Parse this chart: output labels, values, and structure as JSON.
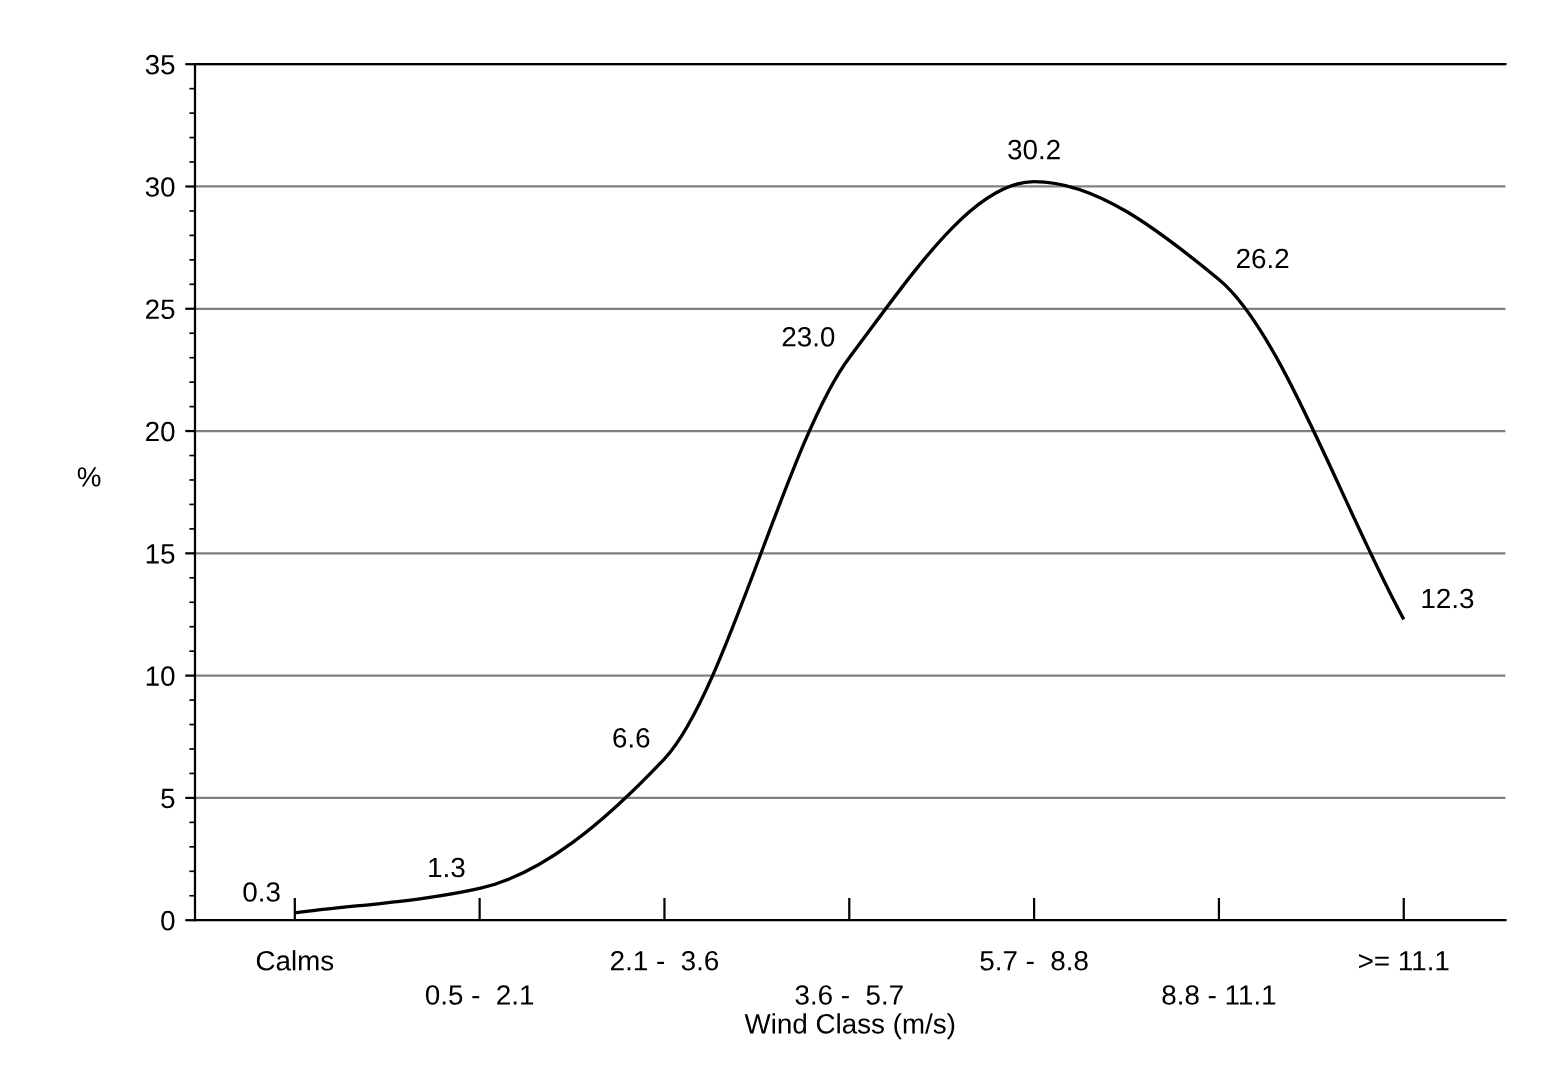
{
  "chart_data": {
    "type": "line",
    "xlabel": "Wind Class (m/s)",
    "ylabel": "%",
    "categories": [
      "Calms",
      "0.5 -  2.1",
      "2.1 -  3.6",
      "3.6 -  5.7",
      "5.7 -  8.8",
      "8.8 - 11.1",
      ">= 11.1"
    ],
    "series": [
      {
        "color": "#000000",
        "values": [
          0.3,
          1.3,
          6.6,
          23.0,
          30.2,
          26.2,
          12.3
        ]
      }
    ],
    "value_labels": [
      "0.3",
      "1.3",
      "6.6",
      "23.0",
      "30.2",
      "26.2",
      "12.3"
    ],
    "ylim": [
      0,
      35
    ],
    "yticks": [
      0,
      5,
      10,
      15,
      20,
      25,
      30,
      35
    ],
    "grid": "y",
    "marker": "none",
    "line_style": "solid"
  }
}
